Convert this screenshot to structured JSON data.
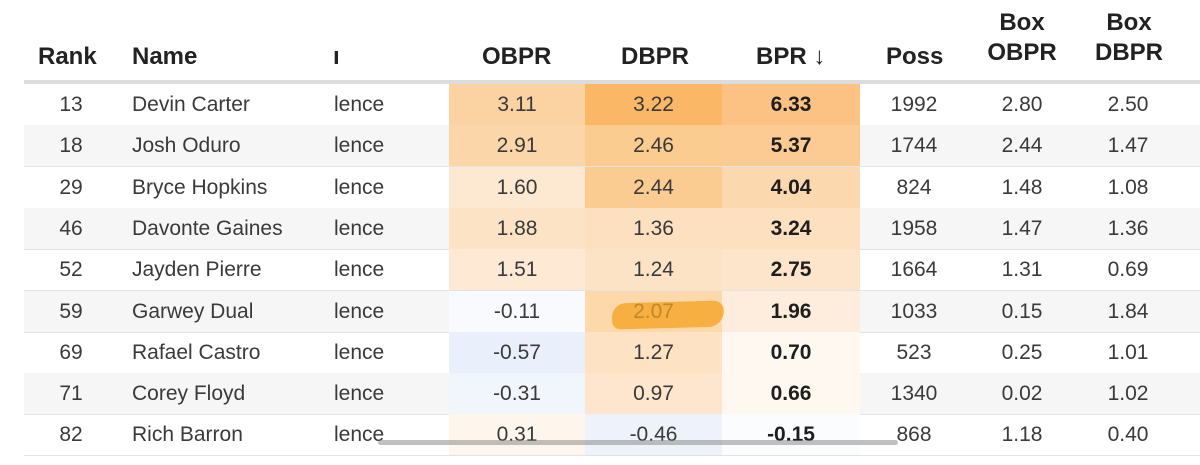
{
  "columns": {
    "rank": "Rank",
    "name": "Name",
    "conf": "ı",
    "obpr": "OBPR",
    "dbpr": "DBPR",
    "bpr": "BPR ↓",
    "poss": "Poss",
    "box_obpr_1": "Box",
    "box_obpr_2": "OBPR",
    "box_dbpr_1": "Box",
    "box_dbpr_2": "DBPR"
  },
  "colors": {
    "header_rule": "#dcdcdc",
    "row_alt": "#f6f6f6",
    "highlighter": "#f4a21c"
  },
  "rows": [
    {
      "rank": "13",
      "name": "Devin Carter",
      "conf": "lence",
      "obpr": "3.11",
      "dbpr": "3.22",
      "bpr": "6.33",
      "poss": "1992",
      "box_obpr": "2.80",
      "box_dbpr": "2.50",
      "obpr_bg": "#fbd3a2",
      "dbpr_bg": "#fab765",
      "bpr_bg": "#fbc283"
    },
    {
      "rank": "18",
      "name": "Josh Oduro",
      "conf": "lence",
      "obpr": "2.91",
      "dbpr": "2.46",
      "bpr": "5.37",
      "poss": "1744",
      "box_obpr": "2.44",
      "box_dbpr": "1.47",
      "obpr_bg": "#fbd6a8",
      "dbpr_bg": "#fbcc90",
      "bpr_bg": "#fbcb93"
    },
    {
      "rank": "29",
      "name": "Bryce Hopkins",
      "conf": "lence",
      "obpr": "1.60",
      "dbpr": "2.44",
      "bpr": "4.04",
      "poss": "824",
      "box_obpr": "1.48",
      "box_dbpr": "1.08",
      "obpr_bg": "#fde8d2",
      "dbpr_bg": "#fbcc91",
      "bpr_bg": "#fcd8ae"
    },
    {
      "rank": "46",
      "name": "Davonte Gaines",
      "conf": "lence",
      "obpr": "1.88",
      "dbpr": "1.36",
      "bpr": "3.24",
      "poss": "1958",
      "box_obpr": "1.47",
      "box_dbpr": "1.36",
      "obpr_bg": "#fde3c6",
      "dbpr_bg": "#fde0bf",
      "bpr_bg": "#fde0bf"
    },
    {
      "rank": "52",
      "name": "Jayden Pierre",
      "conf": "lence",
      "obpr": "1.51",
      "dbpr": "1.24",
      "bpr": "2.75",
      "poss": "1664",
      "box_obpr": "1.31",
      "box_dbpr": "0.69",
      "obpr_bg": "#fde9d4",
      "dbpr_bg": "#fde3c6",
      "bpr_bg": "#fde5cb"
    },
    {
      "rank": "59",
      "name": "Garwey Dual",
      "conf": "lence",
      "obpr": "-0.11",
      "dbpr": "2.07",
      "bpr": "1.96",
      "poss": "1033",
      "box_obpr": "0.15",
      "box_dbpr": "1.84",
      "obpr_bg": "#f9fafd",
      "dbpr_bg": "#fcd8aa",
      "bpr_bg": "#feeddc"
    },
    {
      "rank": "69",
      "name": "Rafael Castro",
      "conf": "lence",
      "obpr": "-0.57",
      "dbpr": "1.27",
      "bpr": "0.70",
      "poss": "523",
      "box_obpr": "0.25",
      "box_dbpr": "1.01",
      "obpr_bg": "#eaf0fb",
      "dbpr_bg": "#fde2c4",
      "bpr_bg": "#fff8f0"
    },
    {
      "rank": "71",
      "name": "Corey Floyd",
      "conf": "lence",
      "obpr": "-0.31",
      "dbpr": "0.97",
      "bpr": "0.66",
      "poss": "1340",
      "box_obpr": "0.02",
      "box_dbpr": "1.02",
      "obpr_bg": "#f1f5fc",
      "dbpr_bg": "#fde6cd",
      "bpr_bg": "#fff8f1"
    },
    {
      "rank": "82",
      "name": "Rich Barron",
      "conf": "lence",
      "obpr": "0.31",
      "dbpr": "-0.46",
      "bpr": "-0.15",
      "poss": "868",
      "box_obpr": "1.18",
      "box_dbpr": "0.40",
      "obpr_bg": "#fef6ec",
      "dbpr_bg": "#edf2fb",
      "bpr_bg": "#fbfcfe"
    }
  ]
}
